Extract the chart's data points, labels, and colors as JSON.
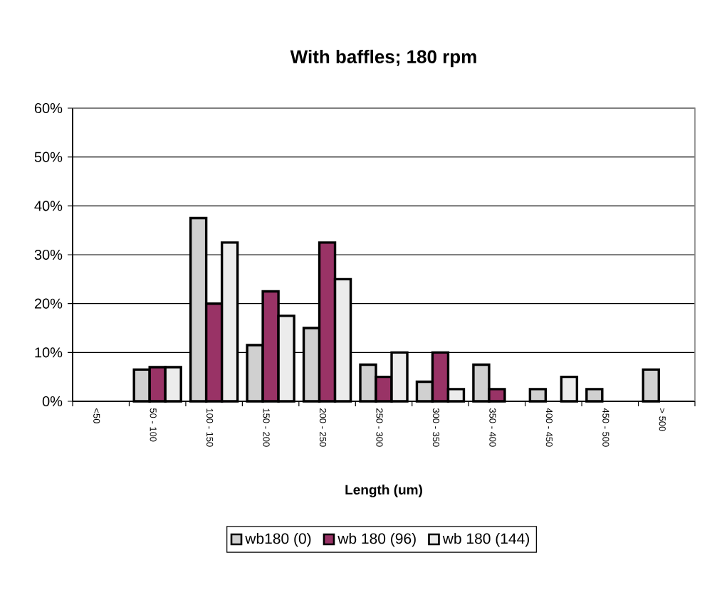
{
  "chart_data": {
    "type": "bar",
    "title": "With baffles; 180 rpm",
    "xlabel": "Length (um)",
    "categories": [
      "<50",
      "50 - 100",
      "100 - 150",
      "150 - 200",
      "200 - 250",
      "250 - 300",
      "300 - 350",
      "350 - 400",
      "400 - 450",
      "450 - 500",
      "> 500"
    ],
    "series": [
      {
        "name": "wb180 (0)",
        "color": "#d0d0d0",
        "values": [
          null,
          6.5,
          37.5,
          11.5,
          15,
          7.5,
          4,
          7.5,
          2.5,
          2.5,
          6.5
        ]
      },
      {
        "name": "wb 180 (96)",
        "color": "#993366",
        "values": [
          null,
          7,
          20,
          22.5,
          32.5,
          5,
          10,
          2.5,
          null,
          null,
          null
        ]
      },
      {
        "name": "wb 180 (144)",
        "color": "#ececec",
        "values": [
          null,
          7,
          32.5,
          17.5,
          25,
          10,
          2.5,
          null,
          5,
          null,
          null
        ]
      }
    ],
    "ylim": [
      0,
      60
    ],
    "yticks": [
      {
        "value": 0,
        "label": "0%"
      },
      {
        "value": 10,
        "label": "10%"
      },
      {
        "value": 20,
        "label": "20%"
      },
      {
        "value": 30,
        "label": "30%"
      },
      {
        "value": 40,
        "label": "40%"
      },
      {
        "value": 50,
        "label": "50%"
      },
      {
        "value": 60,
        "label": "60%"
      }
    ],
    "grid": "y",
    "legend": "bottom"
  }
}
